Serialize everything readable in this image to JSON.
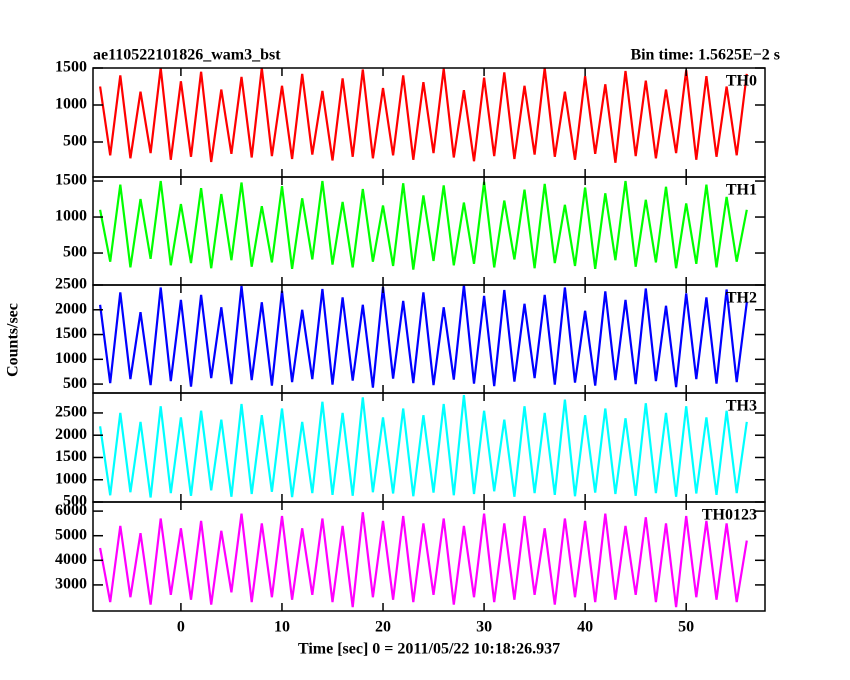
{
  "chart_data": {
    "type": "line",
    "title": "ae110522101826_wam3_bst",
    "subtitle": "Bin time: 1.5625E−2 s",
    "xlabel": "Time [sec] 0 = 2011/05/22 10:18:26.937",
    "ylabel": "Counts/sec",
    "xlim": [
      -8.7,
      57.8
    ],
    "xticks": [
      0,
      10,
      20,
      30,
      40,
      50
    ],
    "x": [
      -8,
      -7,
      -6,
      -5,
      -4,
      -3,
      -2,
      -1,
      0,
      1,
      2,
      3,
      4,
      5,
      6,
      7,
      8,
      9,
      10,
      11,
      12,
      13,
      14,
      15,
      16,
      17,
      18,
      19,
      20,
      21,
      22,
      23,
      24,
      25,
      26,
      27,
      28,
      29,
      30,
      31,
      32,
      33,
      34,
      35,
      36,
      37,
      38,
      39,
      40,
      41,
      42,
      43,
      44,
      45,
      46,
      47,
      48,
      49,
      50,
      51,
      52,
      53,
      54,
      55,
      56
    ],
    "panels": [
      {
        "name": "TH0",
        "color": "#ff0000",
        "ylim": [
          27,
          1500
        ],
        "yticks": [
          500,
          1000,
          1500
        ],
        "values": [
          1250,
          320,
          1400,
          280,
          1180,
          350,
          1500,
          260,
          1320,
          300,
          1450,
          230,
          1210,
          340,
          1380,
          290,
          1500,
          310,
          1260,
          270,
          1420,
          330,
          1190,
          250,
          1360,
          300,
          1480,
          280,
          1230,
          320,
          1400,
          260,
          1310,
          350,
          1490,
          290,
          1200,
          240,
          1370,
          310,
          1440,
          270,
          1260,
          330,
          1500,
          300,
          1180,
          260,
          1390,
          340,
          1280,
          220,
          1460,
          310,
          1330,
          280,
          1210,
          350,
          1470,
          260,
          1390,
          300,
          1250,
          320,
          1420
        ]
      },
      {
        "name": "TH1",
        "color": "#00ff00",
        "ylim": [
          56,
          1556
        ],
        "yticks": [
          500,
          1000,
          1500
        ],
        "values": [
          1100,
          380,
          1450,
          300,
          1250,
          420,
          1500,
          330,
          1180,
          360,
          1400,
          290,
          1320,
          400,
          1480,
          310,
          1150,
          370,
          1430,
          280,
          1260,
          410,
          1500,
          340,
          1210,
          300,
          1390,
          380,
          1160,
          320,
          1470,
          270,
          1300,
          390,
          1440,
          330,
          1200,
          350,
          1490,
          300,
          1230,
          410,
          1380,
          290,
          1460,
          360,
          1170,
          320,
          1410,
          280,
          1330,
          400,
          1500,
          310,
          1240,
          370,
          1420,
          290,
          1190,
          350,
          1450,
          300,
          1280,
          380,
          1100
        ]
      },
      {
        "name": "TH2",
        "color": "#0000ff",
        "ylim": [
          320,
          2500
        ],
        "yticks": [
          500,
          1000,
          1500,
          2000,
          2500
        ],
        "values": [
          2100,
          520,
          2350,
          600,
          1950,
          480,
          2450,
          560,
          2200,
          450,
          2300,
          620,
          2050,
          500,
          2480,
          580,
          2150,
          470,
          2380,
          540,
          2000,
          600,
          2420,
          490,
          2250,
          570,
          2100,
          430,
          2460,
          610,
          2180,
          520,
          2350,
          480,
          2050,
          590,
          2500,
          510,
          2280,
          460,
          2400,
          550,
          2120,
          620,
          2300,
          490,
          2450,
          530,
          1980,
          470,
          2370,
          580,
          2200,
          500,
          2430,
          560,
          2080,
          440,
          2330,
          600,
          2250,
          510,
          2410,
          540,
          2150
        ]
      },
      {
        "name": "TH3",
        "color": "#00ffff",
        "ylim": [
          500,
          2948
        ],
        "yticks": [
          500,
          1000,
          1500,
          2000,
          2500
        ],
        "values": [
          2200,
          650,
          2500,
          720,
          2300,
          600,
          2650,
          700,
          2400,
          640,
          2550,
          760,
          2350,
          620,
          2700,
          680,
          2450,
          730,
          2600,
          610,
          2300,
          700,
          2750,
          660,
          2500,
          640,
          2850,
          720,
          2400,
          690,
          2600,
          630,
          2450,
          710,
          2700,
          650,
          2900,
          680,
          2550,
          740,
          2350,
          620,
          2650,
          700,
          2500,
          660,
          2800,
          630,
          2450,
          710,
          2600,
          680,
          2380,
          640,
          2720,
          700,
          2500,
          620,
          2650,
          690,
          2400,
          660,
          2550,
          700,
          2300
        ]
      },
      {
        "name": "TH0123",
        "color": "#ff00ff",
        "ylim": [
          1940,
          6370
        ],
        "yticks": [
          3000,
          4000,
          5000,
          6000
        ],
        "values": [
          4500,
          2300,
          5400,
          2500,
          5100,
          2200,
          5700,
          2600,
          5300,
          2400,
          5600,
          2200,
          5200,
          2700,
          5900,
          2300,
          5500,
          2500,
          5800,
          2400,
          5300,
          2600,
          5700,
          2300,
          5400,
          2100,
          5950,
          2500,
          5600,
          2400,
          5800,
          2300,
          5500,
          2600,
          5700,
          2200,
          5400,
          2500,
          5900,
          2300,
          5500,
          2400,
          5800,
          2600,
          5300,
          2200,
          5700,
          2500,
          5600,
          2300,
          5900,
          2400,
          5400,
          2600,
          5750,
          2300,
          5500,
          2100,
          5800,
          2500,
          5600,
          2400,
          5500,
          2300,
          4800
        ]
      }
    ]
  }
}
